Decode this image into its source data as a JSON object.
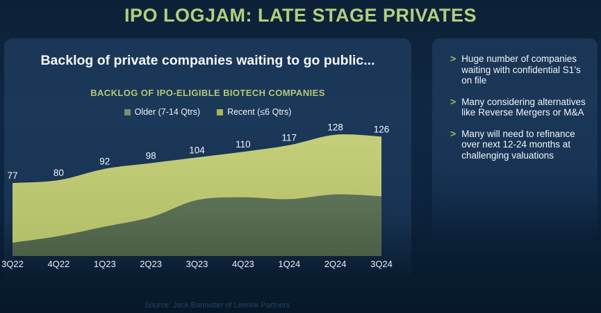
{
  "page": {
    "title": "IPO LOGJAM: LATE STAGE PRIVATES",
    "source_note": "Source: Jack Bannister of Leerink Partners"
  },
  "chart_panel": {
    "heading": "Backlog of private companies waiting to go public...",
    "chart_title": "BACKLOG OF IPO-ELIGIBLE BIOTECH COMPANIES",
    "legend": [
      {
        "label": "Older (7-14 Qtrs)",
        "color": "#7d8e70"
      },
      {
        "label": "Recent (≤6 Qtrs)",
        "color": "#a4b75c"
      }
    ]
  },
  "right_panel": {
    "bullet_marker": ">",
    "bullets": [
      "Huge number of companies waiting with confidential S1’s on file",
      "Many considering alternatives like Reverse Mergers or M&A",
      "Many will need to refinance over next 12-24 months at challenging valuations"
    ]
  },
  "chart_data": {
    "type": "area",
    "stacked": true,
    "title": "BACKLOG OF IPO-ELIGIBLE BIOTECH COMPANIES",
    "categories": [
      "3Q22",
      "4Q22",
      "1Q23",
      "2Q23",
      "3Q23",
      "4Q23",
      "1Q24",
      "2Q24",
      "3Q24"
    ],
    "series": [
      {
        "name": "Older (7-14 Qtrs)",
        "values": [
          14,
          21,
          31,
          41,
          59,
          62,
          60,
          65,
          63
        ],
        "fill_top": "#5d7357",
        "fill_bottom": "#4c5f47"
      },
      {
        "name": "Recent (≤6 Qtrs)",
        "values": [
          63,
          59,
          61,
          57,
          45,
          48,
          57,
          63,
          63
        ],
        "fill_top": "#c5cf7a",
        "fill_bottom": "#b2bd67"
      }
    ],
    "stack_totals": [
      77,
      80,
      92,
      98,
      104,
      110,
      117,
      128,
      126
    ],
    "total_labels_shown": true,
    "x_axis_labels_shown": true,
    "y_axis_shown": false,
    "gridlines": false,
    "ylim": [
      0,
      160
    ],
    "legend_position": "top-center"
  },
  "colors": {
    "background_top": "#0c2137",
    "background_bottom": "#06182a",
    "panel_tint": "#3a6292",
    "title_green": "#b6ce7c",
    "accent_green": "#9dc14b",
    "text_white": "#f3f6f9",
    "source_text": "#26425f"
  }
}
